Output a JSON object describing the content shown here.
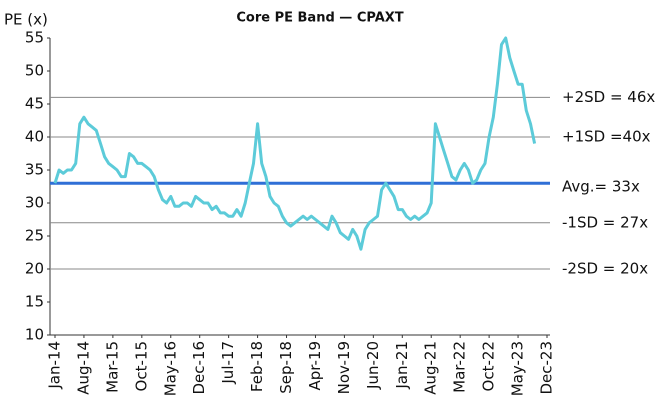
{
  "chart_data": {
    "type": "line",
    "title": "Core PE Band — CPAXT",
    "y_label": "PE (x)",
    "x": [
      "2014-01",
      "2014-02",
      "2014-03",
      "2014-04",
      "2014-05",
      "2014-06",
      "2014-07",
      "2014-08",
      "2014-09",
      "2014-10",
      "2014-11",
      "2014-12",
      "2015-01",
      "2015-02",
      "2015-03",
      "2015-04",
      "2015-05",
      "2015-06",
      "2015-07",
      "2015-08",
      "2015-09",
      "2015-10",
      "2015-11",
      "2015-12",
      "2016-01",
      "2016-02",
      "2016-03",
      "2016-04",
      "2016-05",
      "2016-06",
      "2016-07",
      "2016-08",
      "2016-09",
      "2016-10",
      "2016-11",
      "2016-12",
      "2017-01",
      "2017-02",
      "2017-03",
      "2017-04",
      "2017-05",
      "2017-06",
      "2017-07",
      "2017-08",
      "2017-09",
      "2017-10",
      "2017-11",
      "2017-12",
      "2018-01",
      "2018-02",
      "2018-03",
      "2018-04",
      "2018-05",
      "2018-06",
      "2018-07",
      "2018-08",
      "2018-09",
      "2018-10",
      "2018-11",
      "2018-12",
      "2019-01",
      "2019-02",
      "2019-03",
      "2019-04",
      "2019-05",
      "2019-06",
      "2019-07",
      "2019-08",
      "2019-09",
      "2019-10",
      "2019-11",
      "2019-12",
      "2020-01",
      "2020-02",
      "2020-03",
      "2020-04",
      "2020-05",
      "2020-06",
      "2020-07",
      "2020-08",
      "2020-09",
      "2020-10",
      "2020-11",
      "2020-12",
      "2021-01",
      "2021-02",
      "2021-03",
      "2021-04",
      "2021-05",
      "2021-06",
      "2021-07",
      "2021-08",
      "2021-09",
      "2021-10",
      "2021-11",
      "2021-12",
      "2022-01",
      "2022-02",
      "2022-03",
      "2022-04",
      "2022-05",
      "2022-06",
      "2022-07",
      "2022-08",
      "2022-09",
      "2022-10",
      "2022-11",
      "2022-12",
      "2023-01",
      "2023-02",
      "2023-03",
      "2023-04",
      "2023-05",
      "2023-06",
      "2023-07",
      "2023-08",
      "2023-09"
    ],
    "series": [
      {
        "name": "PE",
        "color": "#5ccbd9",
        "values": [
          33,
          35,
          34.5,
          35,
          35,
          36,
          42,
          43,
          42,
          41.5,
          41,
          39,
          37,
          36,
          35.5,
          35,
          34,
          34,
          37.5,
          37,
          36,
          36,
          35.5,
          35,
          34,
          32,
          30.5,
          30,
          31,
          29.5,
          29.5,
          30,
          30,
          29.5,
          31,
          30.5,
          30,
          30,
          29,
          29.5,
          28.5,
          28.5,
          28,
          28,
          29,
          28,
          30,
          33,
          36,
          42,
          36,
          34,
          31,
          30,
          29.5,
          28,
          27,
          26.5,
          27,
          27.5,
          28,
          27.5,
          28,
          27.5,
          27,
          26.5,
          26,
          28,
          27,
          25.5,
          25,
          24.5,
          26,
          25,
          23,
          26,
          27,
          27.5,
          28,
          32,
          33,
          32,
          31,
          29,
          29,
          28,
          27.5,
          28,
          27.5,
          28,
          28.5,
          30,
          42,
          40,
          38,
          36,
          34,
          33.5,
          35,
          36,
          35,
          33,
          33.5,
          35,
          36,
          40,
          43,
          48,
          54,
          55,
          52,
          50,
          48,
          48,
          44,
          42,
          39
        ]
      }
    ],
    "bands": [
      {
        "value": 46,
        "label": "+2SD = 46x",
        "color": "#888888"
      },
      {
        "value": 40,
        "label": "+1SD =40x",
        "color": "#888888"
      },
      {
        "value": 33,
        "label": "Avg.= 33x",
        "color": "#2f6fd6"
      },
      {
        "value": 27,
        "label": "-1SD = 27x",
        "color": "#888888"
      },
      {
        "value": 20,
        "label": "-2SD = 20x",
        "color": "#888888"
      }
    ],
    "xlim": [
      "2014-01",
      "2023-12"
    ],
    "xticks": [
      {
        "value": "2014-01",
        "label": "Jan-14"
      },
      {
        "value": "2014-08",
        "label": "Aug-14"
      },
      {
        "value": "2015-03",
        "label": "Mar-15"
      },
      {
        "value": "2015-10",
        "label": "Oct-15"
      },
      {
        "value": "2016-05",
        "label": "May-16"
      },
      {
        "value": "2016-12",
        "label": "Dec-16"
      },
      {
        "value": "2017-07",
        "label": "Jul-17"
      },
      {
        "value": "2018-02",
        "label": "Feb-18"
      },
      {
        "value": "2018-09",
        "label": "Sep-18"
      },
      {
        "value": "2019-04",
        "label": "Apr-19"
      },
      {
        "value": "2019-11",
        "label": "Nov-19"
      },
      {
        "value": "2020-06",
        "label": "Jun-20"
      },
      {
        "value": "2021-01",
        "label": "Jan-21"
      },
      {
        "value": "2021-08",
        "label": "Aug-21"
      },
      {
        "value": "2022-03",
        "label": "Mar-22"
      },
      {
        "value": "2022-10",
        "label": "Oct-22"
      },
      {
        "value": "2023-05",
        "label": "May-23"
      },
      {
        "value": "2023-12",
        "label": "Dec-23"
      }
    ],
    "ylim": [
      10,
      55
    ],
    "yticks": [
      10,
      15,
      20,
      25,
      30,
      35,
      40,
      45,
      50,
      55
    ]
  }
}
